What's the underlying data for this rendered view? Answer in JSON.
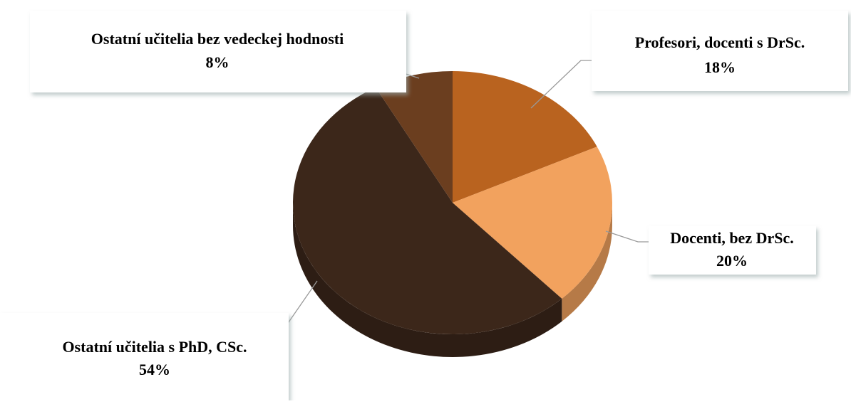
{
  "chart_data": {
    "type": "pie",
    "categories": [
      "Profesori, docenti s DrSc.",
      "Docenti, bez DrSc.",
      "Ostatní učitelia s PhD, CSc.",
      "Ostatní učitelia bez vedeckej hodnosti"
    ],
    "values": [
      18,
      20,
      54,
      8
    ],
    "value_labels": [
      "18%",
      "20%",
      "54%",
      "8%"
    ],
    "colors": [
      "#b9631f",
      "#f2a25e",
      "#3c271a",
      "#6b3e1f"
    ]
  }
}
